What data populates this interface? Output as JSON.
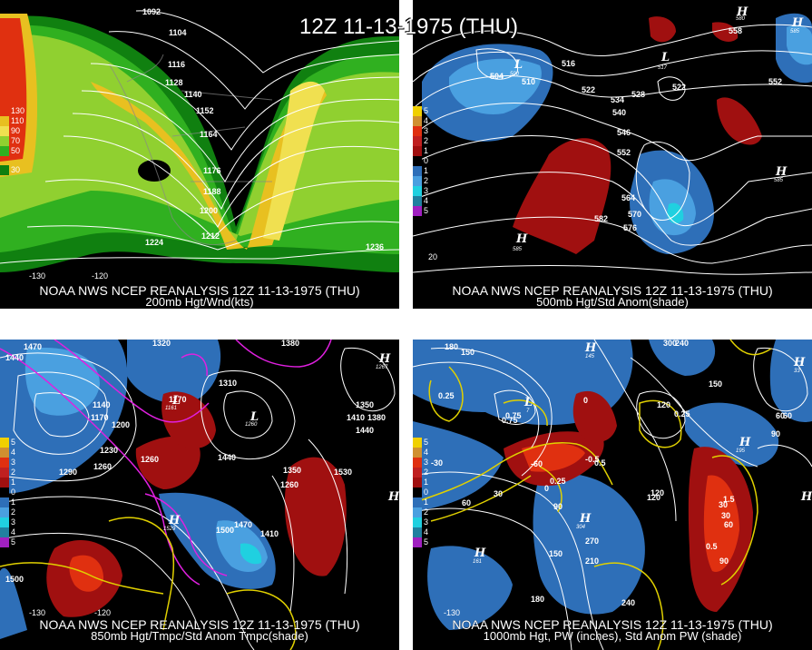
{
  "main_title": "12Z 11-13-1975 (THU)",
  "panels": {
    "p200": {
      "header": "NOAA NWS NCEP REANALYSIS 12Z 11-13-1975 (THU)",
      "subtitle": "200mb Hgt/Wnd(kts)",
      "legend": [
        "130",
        "110",
        "90",
        "70",
        "50",
        "30"
      ],
      "contours": [
        "1092",
        "1104",
        "1116",
        "1128",
        "1140",
        "1152",
        "1164",
        "1176",
        "1188",
        "1200",
        "1212",
        "1224",
        "1236"
      ],
      "lon": [
        "-130",
        "-120"
      ],
      "colors": {
        "strong": "#e03010",
        "mid": "#e8c020",
        "light": "#f0e050",
        "green1": "#90d030",
        "green2": "#30b020",
        "green3": "#108010"
      }
    },
    "p500": {
      "header": "NOAA NWS NCEP REANALYSIS 12Z 11-13-1975 (THU)",
      "subtitle": "500mb Hgt/Std Anom(shade)",
      "legend": [
        "5",
        "4",
        "3",
        "2",
        "1",
        "0",
        "1",
        "2",
        "3",
        "4",
        "5"
      ],
      "contours": [
        "504",
        "510",
        "516",
        "522",
        "528",
        "534",
        "540",
        "546",
        "552",
        "558",
        "564",
        "570",
        "576",
        "582",
        "522",
        "552",
        "558"
      ],
      "centers": {
        "low1": "L",
        "low1_val": "500",
        "high1": "H",
        "high1_val": "585",
        "high2": "H",
        "high2_val": "585",
        "low2": "L",
        "low2_val": "517",
        "high3": "H",
        "high3_val": "580",
        "high4": "H",
        "high4_val": "585"
      },
      "lon": [
        "20"
      ]
    },
    "p850": {
      "header": "NOAA NWS NCEP REANALYSIS 12Z 11-13-1975 (THU)",
      "subtitle": "850mb Hgt/Tmpc/Std Anom Tmpc(shade)",
      "legend": [
        "5",
        "4",
        "3",
        "2",
        "1",
        "0",
        "1",
        "2",
        "3",
        "4",
        "5"
      ],
      "contours": [
        "1470",
        "1440",
        "1320",
        "1380",
        "1140",
        "1170",
        "1200",
        "1230",
        "1260",
        "1290",
        "1170",
        "1310",
        "1350",
        "1410",
        "1380",
        "1440",
        "1440",
        "1350",
        "1530",
        "1500",
        "1470",
        "1410",
        "1500",
        "1260",
        "1260"
      ],
      "centers": {
        "low1": "L",
        "low1_val": "1161",
        "low2": "L",
        "low2_val": "1260",
        "high1": "H",
        "high1_val": "1267",
        "high2": "H",
        "high2_val": "1529",
        "high3": "H"
      },
      "lon": [
        "-130",
        "-120"
      ]
    },
    "p1000": {
      "header": "NOAA NWS NCEP REANALYSIS 12Z 11-13-1975 (THU)",
      "subtitle": "1000mb Hgt, PW (inches), Std Anom PW (shade)",
      "legend": [
        "5",
        "4",
        "3",
        "2",
        "1",
        "0",
        "1",
        "2",
        "3",
        "4",
        "5"
      ],
      "contours": [
        "180",
        "150",
        "0.25",
        "0.75",
        "-60",
        "-30",
        "30",
        "60",
        "0",
        "90",
        "120",
        "150",
        "180",
        "210",
        "240",
        "270",
        "300",
        "240",
        "120",
        "150",
        "60",
        "30",
        "90",
        "60",
        "30",
        "0.25",
        "0.5",
        "0.5",
        "0.75",
        "1.5",
        "0.25",
        "120",
        "90",
        "60",
        "0",
        "-0.5"
      ],
      "centers": {
        "high1": "H",
        "high1_val": "145",
        "low1": "L",
        "low1_val": "7",
        "high2": "H",
        "high2_val": "304",
        "high3": "H",
        "high3_val": "161",
        "high4": "H",
        "high4_val": "33",
        "high5": "H",
        "high5_val": "195",
        "high6": "H"
      },
      "lon": [
        "-130"
      ]
    }
  }
}
